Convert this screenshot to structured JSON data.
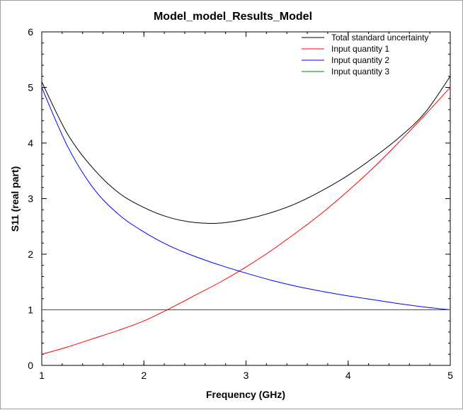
{
  "chart_data": {
    "type": "line",
    "title": "Model_model_Results_Model",
    "xlabel": "Frequency (GHz)",
    "ylabel": "S11 (real part)",
    "xlim": [
      1,
      5
    ],
    "ylim": [
      0,
      6
    ],
    "x_ticks": [
      "1",
      "2",
      "3",
      "4",
      "5"
    ],
    "y_ticks": [
      "0",
      "1",
      "2",
      "3",
      "4",
      "5",
      "6"
    ],
    "grid": false,
    "legend_position": "top-right",
    "x": [
      1.0,
      1.25,
      1.5,
      1.75,
      2.0,
      2.25,
      2.5,
      2.75,
      3.0,
      3.25,
      3.5,
      3.75,
      4.0,
      4.25,
      4.5,
      4.75,
      5.0
    ],
    "series": [
      {
        "name": "Total standard uncertainty",
        "color": "#000000",
        "values": [
          5.1,
          4.17,
          3.55,
          3.11,
          2.84,
          2.66,
          2.57,
          2.56,
          2.63,
          2.75,
          2.92,
          3.15,
          3.42,
          3.74,
          4.1,
          4.54,
          5.2
        ]
      },
      {
        "name": "Input quantity 1",
        "color": "#ff0000",
        "values": [
          0.2,
          0.33,
          0.48,
          0.63,
          0.8,
          1.02,
          1.26,
          1.5,
          1.77,
          2.07,
          2.4,
          2.75,
          3.14,
          3.56,
          4.02,
          4.5,
          5.0
        ]
      },
      {
        "name": "Input quantity 2",
        "color": "#0000ff",
        "values": [
          5.0,
          3.95,
          3.2,
          2.72,
          2.4,
          2.15,
          1.96,
          1.8,
          1.66,
          1.53,
          1.42,
          1.33,
          1.25,
          1.18,
          1.11,
          1.05,
          1.0
        ]
      },
      {
        "name": "Input quantity 3",
        "color": "#008000",
        "values": [
          1.0,
          1.0,
          1.0,
          1.0,
          1.0,
          1.0,
          1.0,
          1.0,
          1.0,
          1.0,
          1.0,
          1.0,
          1.0,
          1.0,
          1.0,
          1.0,
          1.0
        ]
      }
    ]
  }
}
